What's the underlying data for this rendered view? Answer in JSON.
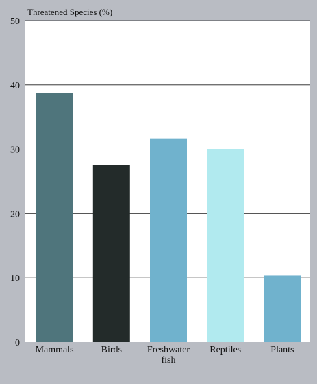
{
  "chart_data": {
    "type": "bar",
    "title": "",
    "xlabel": "",
    "ylabel": "Threatened Species (%)",
    "categories": [
      "Mammals",
      "Birds",
      "Freshwater fish",
      "Reptiles",
      "Plants"
    ],
    "category_lines": [
      [
        "Mammals"
      ],
      [
        "Birds"
      ],
      [
        "Freshwater",
        "fish"
      ],
      [
        "Reptiles"
      ],
      [
        "Plants"
      ]
    ],
    "values": [
      38.7,
      27.6,
      31.7,
      30.0,
      10.4
    ],
    "bar_colors": [
      "#4f757c",
      "#232b2a",
      "#70b2cd",
      "#b1eaef",
      "#70b2cd"
    ],
    "ylim": [
      0,
      50
    ],
    "yticks": [
      0,
      10,
      20,
      30,
      40,
      50
    ],
    "grid": true,
    "legend": "none",
    "colors": {
      "plot_background": "#ffffff",
      "page_background": "#b9bcc3",
      "grid": "#1f1f1f"
    }
  }
}
